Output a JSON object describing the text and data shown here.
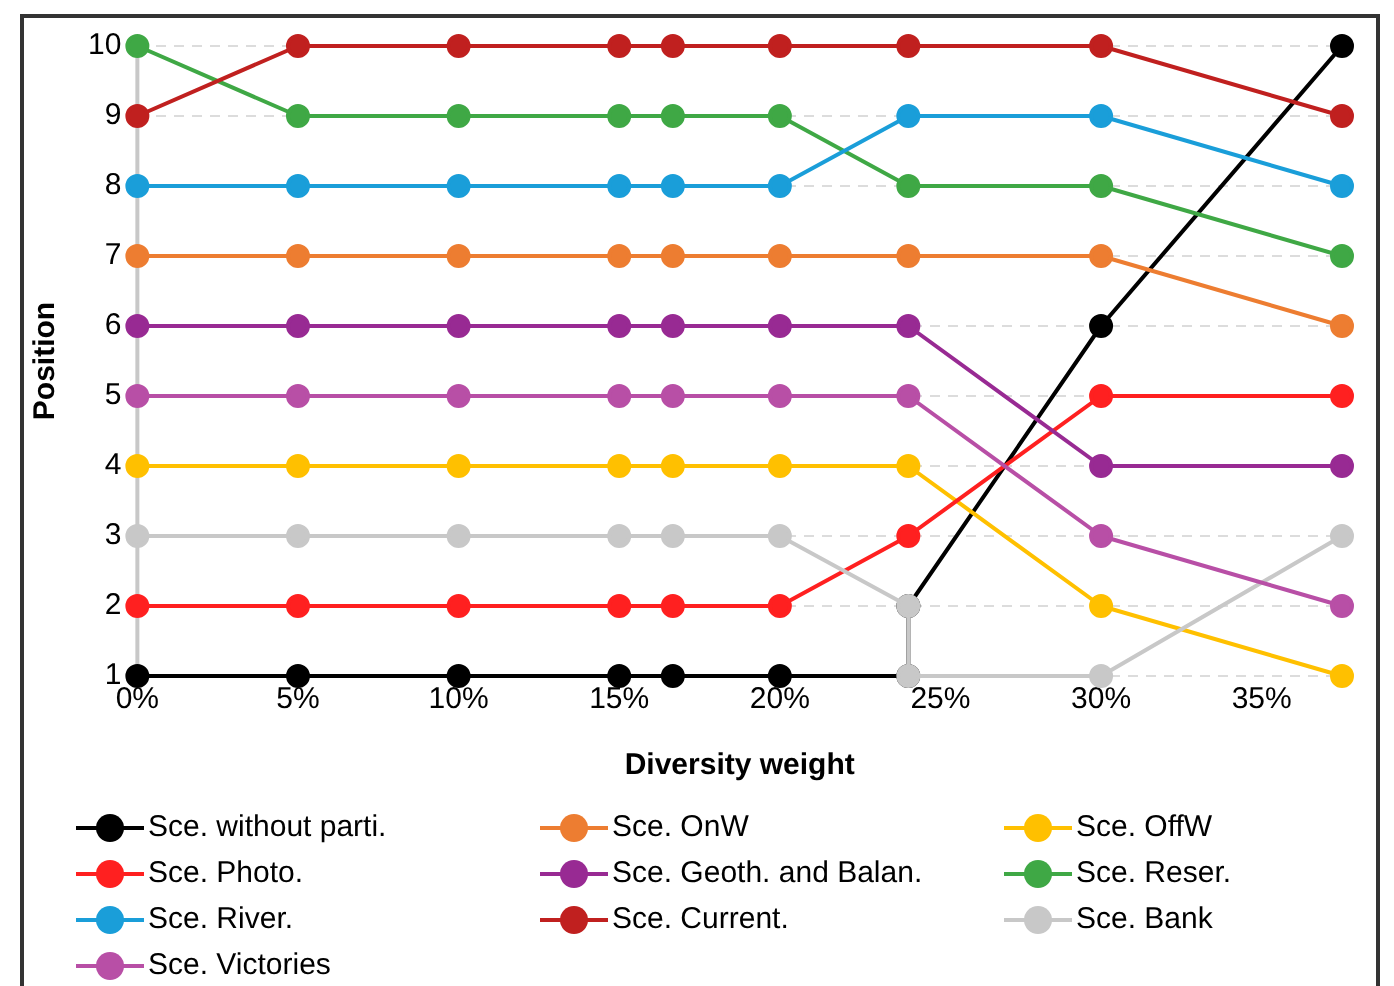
{
  "chart_data": {
    "type": "line",
    "xlabel": "Diversity weight",
    "ylabel": "Position",
    "xlim": [
      0,
      37.5
    ],
    "ylim": [
      1,
      10
    ],
    "xticks": [
      {
        "value": 0,
        "label": "0%"
      },
      {
        "value": 5,
        "label": "5%"
      },
      {
        "value": 10,
        "label": "10%"
      },
      {
        "value": 15,
        "label": "15%"
      },
      {
        "value": 20,
        "label": "20%"
      },
      {
        "value": 25,
        "label": "25%"
      },
      {
        "value": 30,
        "label": "30%"
      },
      {
        "value": 35,
        "label": "35%"
      }
    ],
    "yticks": [
      1,
      2,
      3,
      4,
      5,
      6,
      7,
      8,
      9,
      10
    ],
    "grid": "y",
    "legend": "bottom",
    "marker": "circle",
    "line_style": "solid",
    "x": [
      0,
      5,
      10,
      15,
      16.67,
      20,
      24,
      30,
      37.5
    ],
    "series": [
      {
        "name": "Sce. without parti.",
        "color": "#000000",
        "x": [
          0,
          5,
          10,
          15,
          16.67,
          20,
          24,
          24,
          30,
          37.5
        ],
        "values": [
          1,
          1,
          1,
          1,
          1,
          1,
          1,
          2,
          6,
          10
        ]
      },
      {
        "name": "Sce. OnW",
        "color": "#ed7d31",
        "values": [
          7,
          7,
          7,
          7,
          7,
          7,
          7,
          7,
          6
        ]
      },
      {
        "name": "Sce. OffW",
        "color": "#ffc000",
        "values": [
          4,
          4,
          4,
          4,
          4,
          4,
          4,
          2,
          1
        ]
      },
      {
        "name": "Sce. Photo.",
        "color": "#ff2020",
        "values": [
          2,
          2,
          2,
          2,
          2,
          2,
          3,
          5,
          5
        ]
      },
      {
        "name": "Sce. Geoth. and Balan.",
        "color": "#982a93",
        "values": [
          6,
          6,
          6,
          6,
          6,
          6,
          6,
          4,
          4
        ]
      },
      {
        "name": "Sce. Reser.",
        "color": "#3fa845",
        "values": [
          10,
          9,
          9,
          9,
          9,
          9,
          8,
          8,
          7
        ]
      },
      {
        "name": "Sce. River.",
        "color": "#1a9ed9",
        "values": [
          8,
          8,
          8,
          8,
          8,
          8,
          9,
          9,
          8
        ]
      },
      {
        "name": "Sce. Current.",
        "color": "#c0201f",
        "values": [
          9,
          10,
          10,
          10,
          10,
          10,
          10,
          10,
          9
        ]
      },
      {
        "name": "Sce. Bank",
        "color": "#c8c8c8",
        "x": [
          0,
          5,
          10,
          15,
          16.67,
          20,
          24,
          24,
          30,
          37.5
        ],
        "values": [
          3,
          3,
          3,
          3,
          3,
          3,
          2,
          1,
          1,
          3
        ]
      },
      {
        "name": "Sce. Victories",
        "color": "#b84fa6",
        "values": [
          5,
          5,
          5,
          5,
          5,
          5,
          5,
          3,
          2
        ]
      }
    ]
  }
}
